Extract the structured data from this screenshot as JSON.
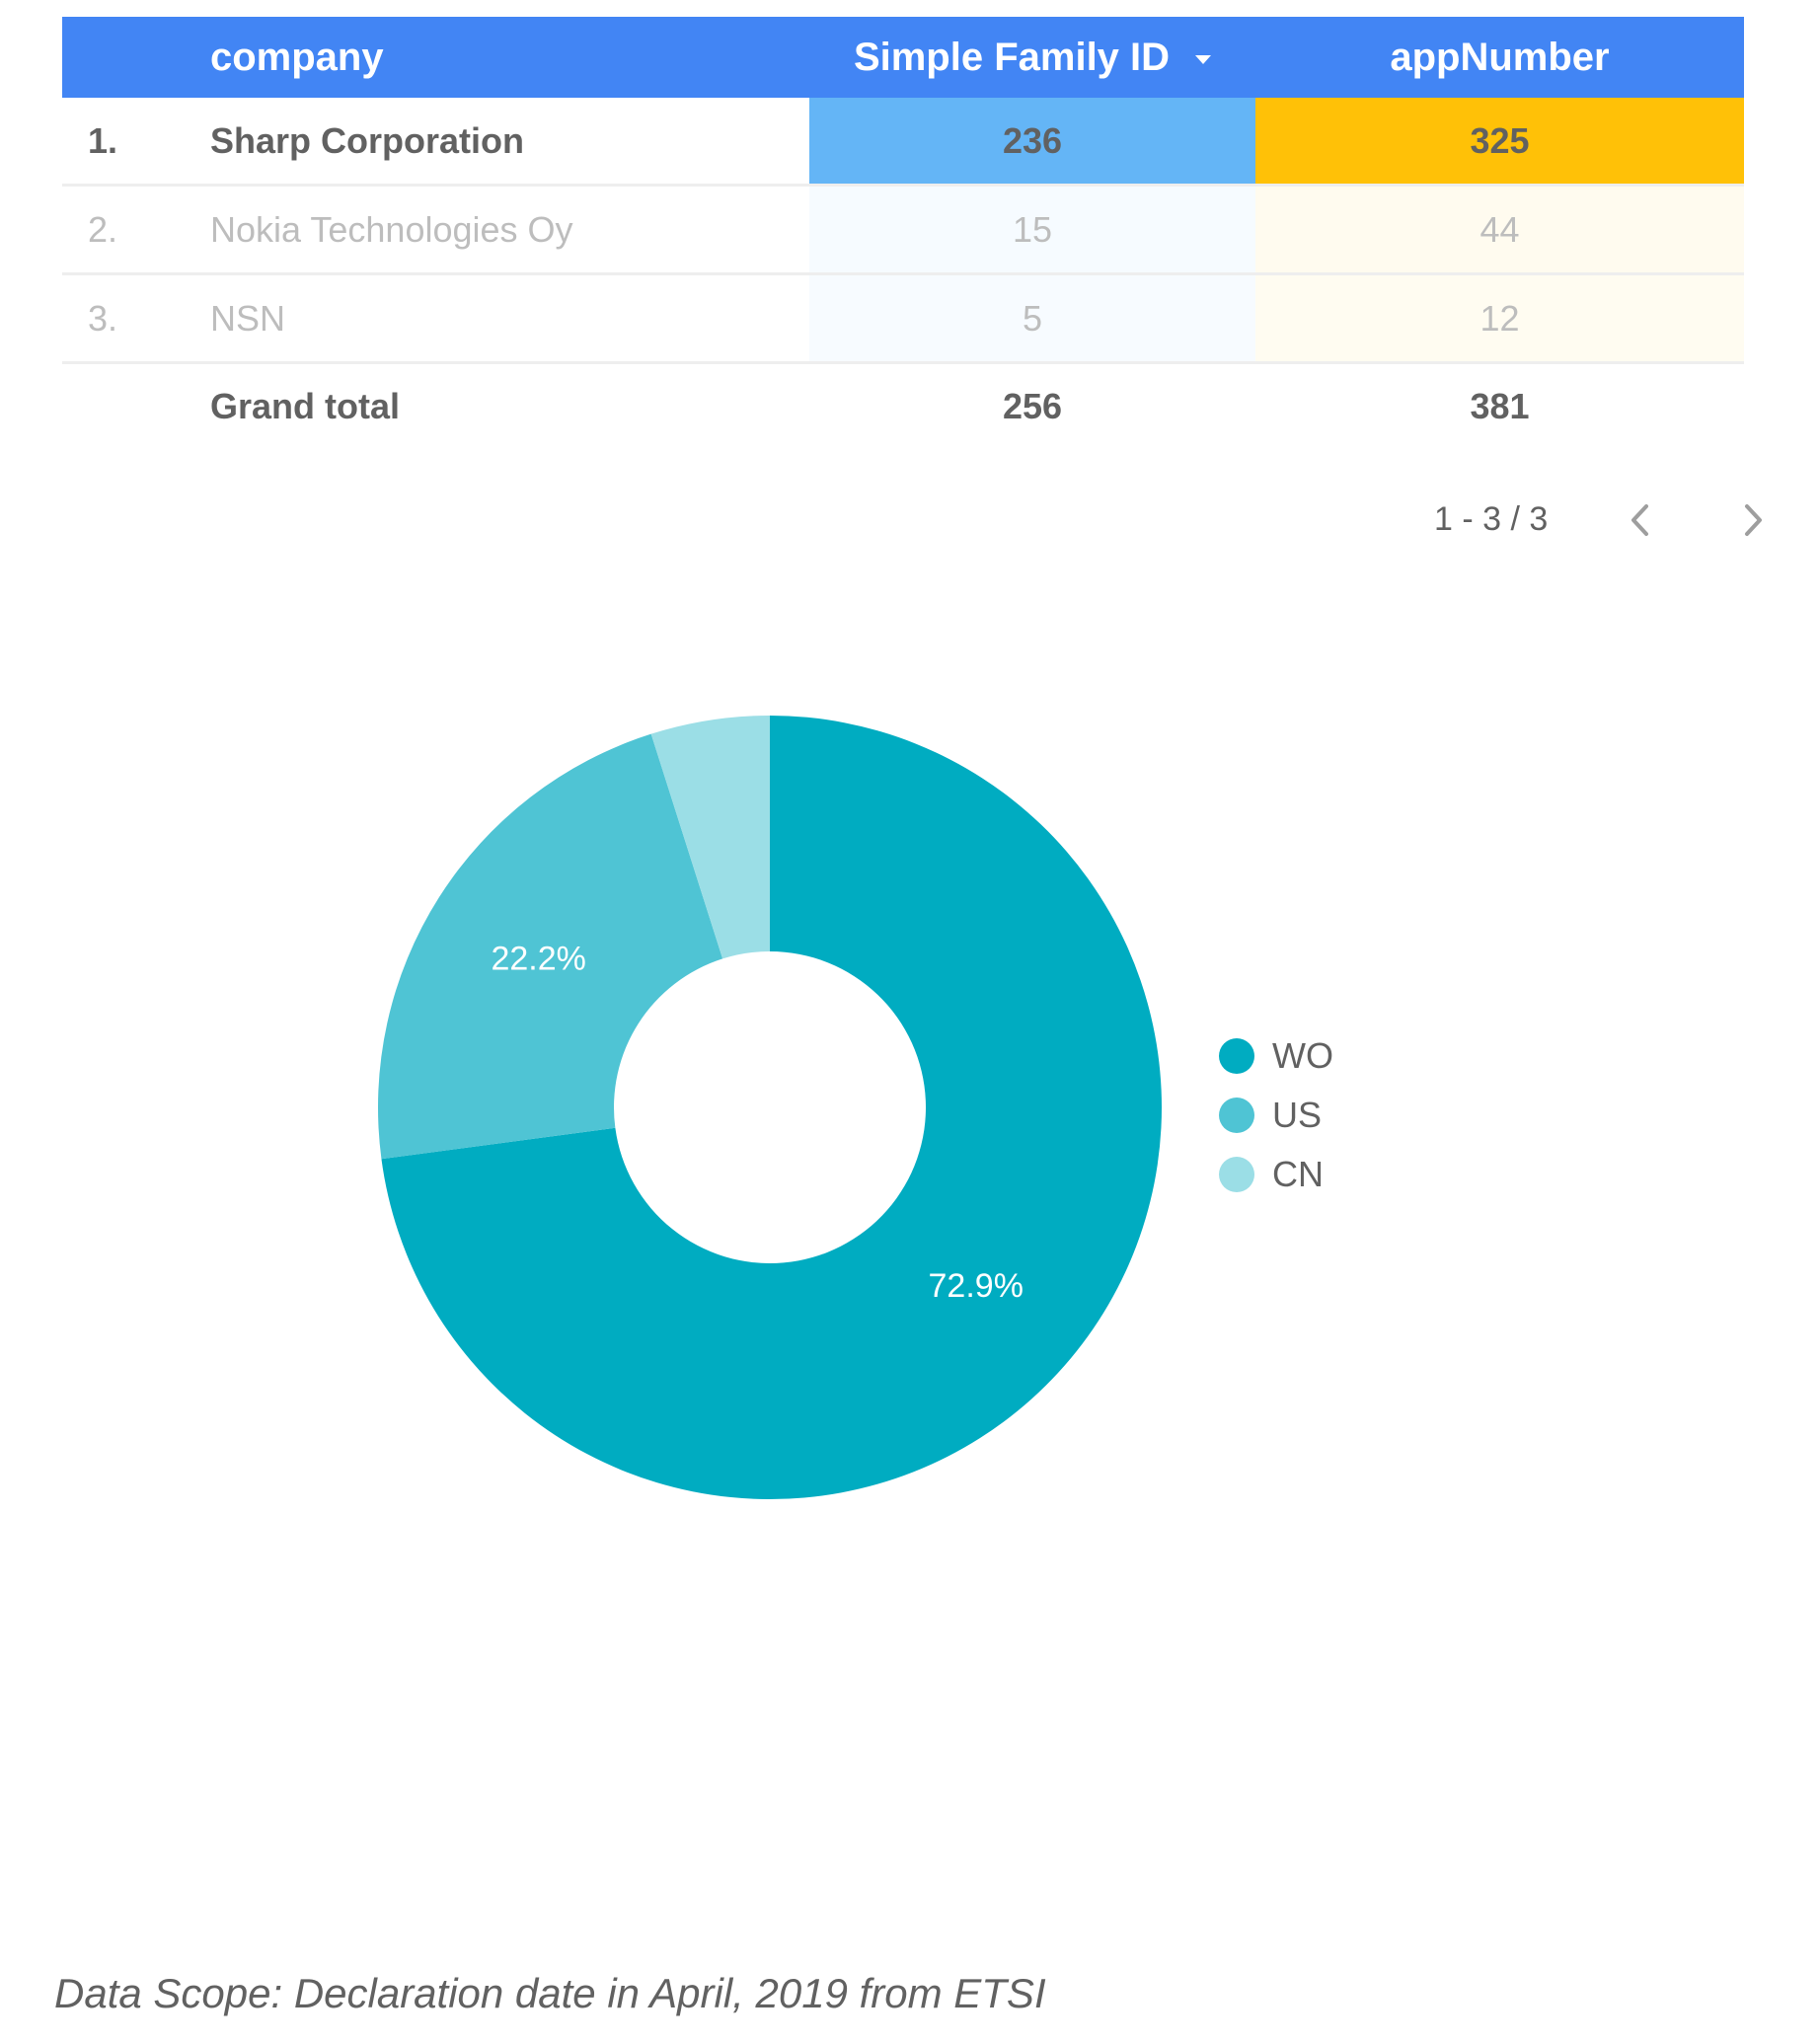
{
  "table": {
    "columns": {
      "company": "company",
      "simple_family_id": "Simple Family ID",
      "app_number": "appNumber"
    },
    "sorted_column": "Simple Family ID",
    "rows": [
      {
        "rank": "1.",
        "company": "Sharp Corporation",
        "simple_family_id": "236",
        "app_number": "325"
      },
      {
        "rank": "2.",
        "company": "Nokia Technologies Oy",
        "simple_family_id": "15",
        "app_number": "44"
      },
      {
        "rank": "3.",
        "company": "NSN",
        "simple_family_id": "5",
        "app_number": "12"
      }
    ],
    "grand_total": {
      "label": "Grand total",
      "simple_family_id": "256",
      "app_number": "381"
    },
    "pagination": {
      "range": "1 - 3 / 3"
    },
    "colors": {
      "header": "#4285f4",
      "sfid_heat": "#64b5f6",
      "app_heat": "#ffc107"
    }
  },
  "chart_data": {
    "type": "pie",
    "donut": true,
    "categories": [
      "WO",
      "US",
      "CN"
    ],
    "values": [
      72.9,
      22.2,
      4.9
    ],
    "value_labels": [
      "72.9%",
      "22.2%",
      ""
    ],
    "colors": [
      "#00acc1",
      "#4fc4d4",
      "#9bdee6"
    ],
    "legend_placement": "right",
    "start_angle": "12 o'clock",
    "direction": "clockwise"
  },
  "footnote": "Data Scope: Declaration date in April, 2019 from ETSI"
}
